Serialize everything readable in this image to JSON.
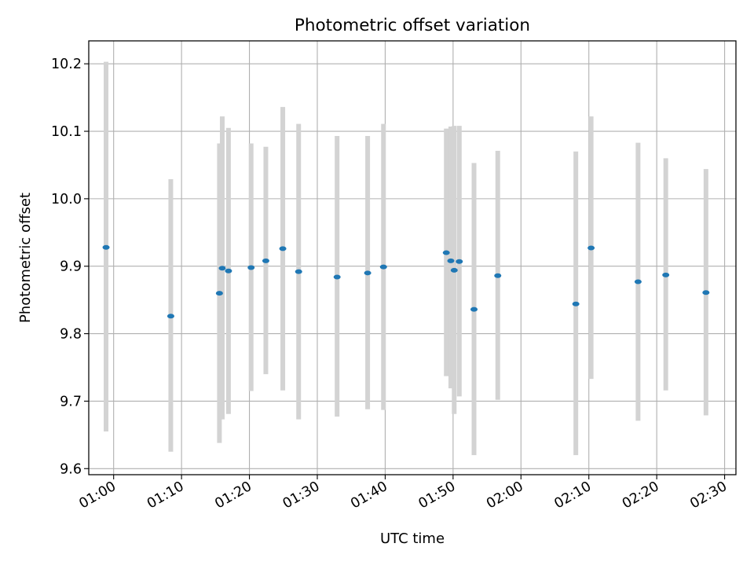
{
  "chart_data": {
    "type": "scatter",
    "title": "Photometric offset variation",
    "xlabel": "UTC time",
    "ylabel": "Photometric offset",
    "x_ticks": [
      "01:00",
      "01:10",
      "01:20",
      "01:30",
      "01:40",
      "01:50",
      "02:00",
      "02:10",
      "02:20",
      "02:30"
    ],
    "y_ticks": [
      "9.6",
      "9.7",
      "9.8",
      "9.9",
      "10.0",
      "10.1",
      "10.2"
    ],
    "xlim": [
      "00:56:20",
      "02:31:40"
    ],
    "ylim": [
      9.591,
      10.234
    ],
    "grid": true,
    "legend": false,
    "colors": {
      "point": "#1f77b4",
      "errorbar": "#d3d3d3",
      "grid": "#b0b0b0",
      "axes": "#000000"
    },
    "series": [
      {
        "points": [
          {
            "x": "00:58:53",
            "y": 9.928,
            "ylow": 9.655,
            "yhigh": 10.203
          },
          {
            "x": "01:08:25",
            "y": 9.826,
            "ylow": 9.625,
            "yhigh": 10.029
          },
          {
            "x": "01:15:35",
            "y": 9.86,
            "ylow": 9.638,
            "yhigh": 10.082
          },
          {
            "x": "01:16:00",
            "y": 9.897,
            "ylow": 9.673,
            "yhigh": 10.122
          },
          {
            "x": "01:16:55",
            "y": 9.893,
            "ylow": 9.681,
            "yhigh": 10.105
          },
          {
            "x": "01:20:15",
            "y": 9.898,
            "ylow": 9.715,
            "yhigh": 10.082
          },
          {
            "x": "01:22:25",
            "y": 9.908,
            "ylow": 9.74,
            "yhigh": 10.077
          },
          {
            "x": "01:24:55",
            "y": 9.926,
            "ylow": 9.716,
            "yhigh": 10.136
          },
          {
            "x": "01:27:15",
            "y": 9.892,
            "ylow": 9.673,
            "yhigh": 10.111
          },
          {
            "x": "01:32:55",
            "y": 9.884,
            "ylow": 9.677,
            "yhigh": 10.093
          },
          {
            "x": "01:37:25",
            "y": 9.89,
            "ylow": 9.688,
            "yhigh": 10.093
          },
          {
            "x": "01:39:45",
            "y": 9.899,
            "ylow": 9.687,
            "yhigh": 10.111
          },
          {
            "x": "01:49:00",
            "y": 9.92,
            "ylow": 9.737,
            "yhigh": 10.104
          },
          {
            "x": "01:49:40",
            "y": 9.908,
            "ylow": 9.719,
            "yhigh": 10.107
          },
          {
            "x": "01:50:10",
            "y": 9.894,
            "ylow": 9.681,
            "yhigh": 10.108
          },
          {
            "x": "01:50:55",
            "y": 9.907,
            "ylow": 9.707,
            "yhigh": 10.108
          },
          {
            "x": "01:53:05",
            "y": 9.836,
            "ylow": 9.62,
            "yhigh": 10.053
          },
          {
            "x": "01:56:35",
            "y": 9.886,
            "ylow": 9.702,
            "yhigh": 10.071
          },
          {
            "x": "02:08:05",
            "y": 9.844,
            "ylow": 9.62,
            "yhigh": 10.07
          },
          {
            "x": "02:10:20",
            "y": 9.927,
            "ylow": 9.733,
            "yhigh": 10.122
          },
          {
            "x": "02:17:15",
            "y": 9.877,
            "ylow": 9.671,
            "yhigh": 10.083
          },
          {
            "x": "02:21:20",
            "y": 9.887,
            "ylow": 9.716,
            "yhigh": 10.06
          },
          {
            "x": "02:27:15",
            "y": 9.861,
            "ylow": 9.679,
            "yhigh": 10.044
          }
        ]
      }
    ]
  }
}
